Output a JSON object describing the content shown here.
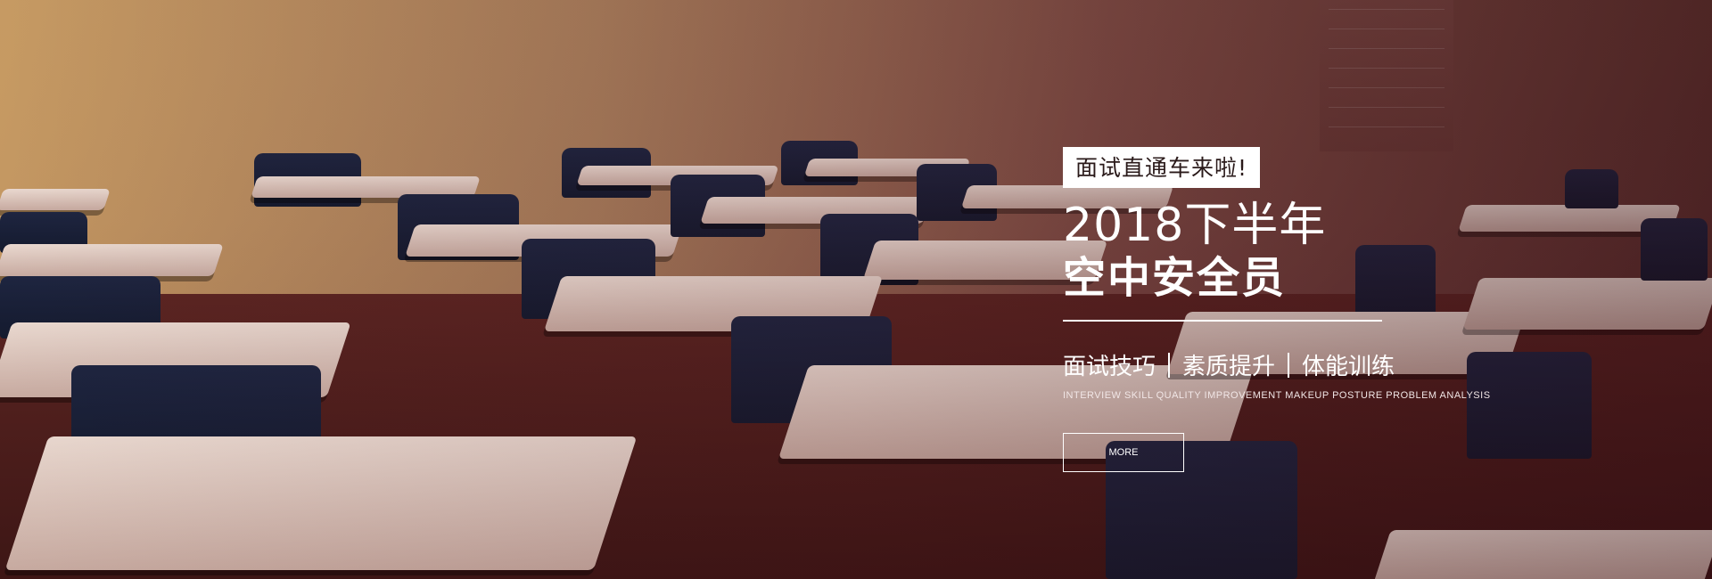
{
  "banner": {
    "tagline": "面试直通车来啦!",
    "year_line": "2018下半年",
    "title": "空中安全员",
    "features": [
      "面试技巧",
      "素质提升",
      "体能训练"
    ],
    "subtitle": "INTERVIEW SKILL QUALITY IMPROVEMENT MAKEUP POSTURE PROBLEM ANALYSIS",
    "more_label": "MORE"
  },
  "background": {
    "scene": "classroom-photo",
    "overlay_color": "#3a0f18"
  }
}
